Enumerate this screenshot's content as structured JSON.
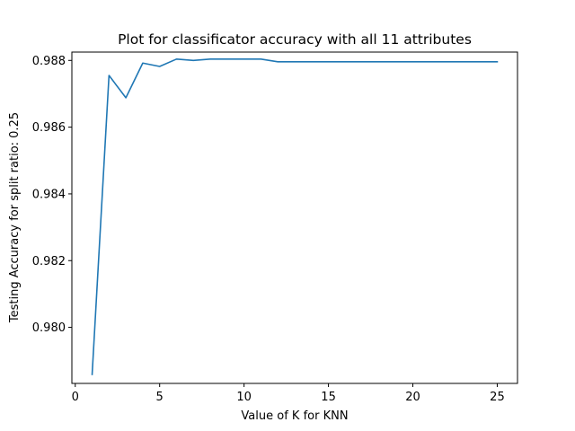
{
  "chart_data": {
    "type": "line",
    "title": "Plot for classificator accuracy with all 11 attributes",
    "xlabel": "Value of K for KNN",
    "ylabel": "Testing Accuracy for split ratio: 0.25",
    "xlim": [
      -0.2,
      26.2
    ],
    "ylim": [
      0.97832,
      0.98825
    ],
    "xticks": [
      0,
      5,
      10,
      15,
      20,
      25
    ],
    "xtick_labels": [
      "0",
      "5",
      "10",
      "15",
      "20",
      "25"
    ],
    "yticks": [
      0.98,
      0.982,
      0.984,
      0.986,
      0.988
    ],
    "ytick_labels": [
      "0.980",
      "0.982",
      "0.984",
      "0.986",
      "0.988"
    ],
    "grid": false,
    "series": [
      {
        "name": "accuracy",
        "color": "#1f77b4",
        "x": [
          1,
          2,
          3,
          4,
          5,
          6,
          7,
          8,
          9,
          10,
          11,
          12,
          13,
          14,
          15,
          16,
          17,
          18,
          19,
          20,
          21,
          22,
          23,
          24,
          25
        ],
        "y": [
          0.97859,
          0.98755,
          0.98688,
          0.98792,
          0.98782,
          0.98804,
          0.988,
          0.98804,
          0.98804,
          0.98804,
          0.98804,
          0.98796,
          0.98796,
          0.98796,
          0.98796,
          0.98796,
          0.98796,
          0.98796,
          0.98796,
          0.98796,
          0.98796,
          0.98796,
          0.98796,
          0.98796,
          0.98796
        ]
      }
    ]
  }
}
